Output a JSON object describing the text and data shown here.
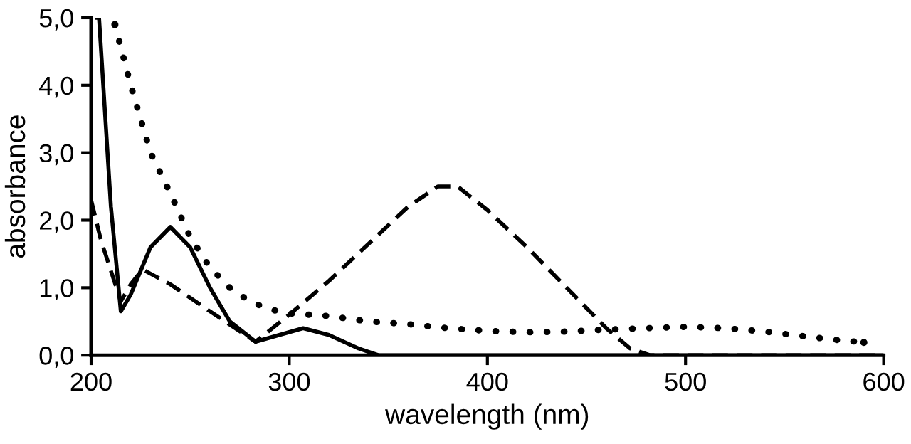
{
  "chart_data": {
    "type": "line",
    "xlabel": "wavelength (nm)",
    "ylabel": "absorbance",
    "xlim": [
      200,
      600
    ],
    "ylim": [
      0,
      5
    ],
    "xticks": [
      200,
      300,
      400,
      500,
      600
    ],
    "yticks": [
      {
        "value": 0,
        "label": "0,0"
      },
      {
        "value": 1,
        "label": "1,0"
      },
      {
        "value": 2,
        "label": "2,0"
      },
      {
        "value": 3,
        "label": "3,0"
      },
      {
        "value": 4,
        "label": "4,0"
      },
      {
        "value": 5,
        "label": "5,0"
      }
    ],
    "grid": false,
    "marker": "none",
    "series": [
      {
        "color": "#000000",
        "line_style": "solid",
        "x": [
          202,
          204,
          210,
          215,
          220,
          230,
          240,
          250,
          260,
          270,
          283,
          295,
          307,
          320,
          335,
          345,
          400,
          500,
          600
        ],
        "values": [
          5.0,
          5.0,
          2.2,
          0.65,
          0.9,
          1.6,
          1.9,
          1.6,
          1.0,
          0.5,
          0.2,
          0.3,
          0.4,
          0.3,
          0.1,
          0.0,
          0.0,
          0.0,
          0.0
        ]
      },
      {
        "color": "#000000",
        "line_style": "dashed",
        "x": [
          200,
          205,
          215,
          220,
          226,
          240,
          260,
          283,
          300,
          320,
          340,
          360,
          375,
          385,
          400,
          420,
          440,
          460,
          472,
          482,
          500,
          550,
          600
        ],
        "values": [
          2.3,
          1.7,
          0.8,
          1.05,
          1.27,
          1.05,
          0.65,
          0.2,
          0.6,
          1.1,
          1.65,
          2.2,
          2.5,
          2.5,
          2.15,
          1.6,
          1.0,
          0.4,
          0.1,
          0.0,
          0.0,
          0.0,
          0.0
        ]
      },
      {
        "color": "#000000",
        "line_style": "dotted",
        "x": [
          212,
          220,
          230,
          240,
          250,
          260,
          270,
          280,
          290,
          300,
          320,
          340,
          360,
          380,
          400,
          420,
          440,
          460,
          480,
          500,
          520,
          540,
          560,
          575,
          590
        ],
        "values": [
          4.9,
          4.0,
          3.0,
          2.4,
          1.75,
          1.3,
          1.0,
          0.8,
          0.68,
          0.62,
          0.58,
          0.5,
          0.46,
          0.4,
          0.36,
          0.34,
          0.35,
          0.38,
          0.4,
          0.42,
          0.4,
          0.35,
          0.28,
          0.23,
          0.19
        ]
      }
    ]
  }
}
